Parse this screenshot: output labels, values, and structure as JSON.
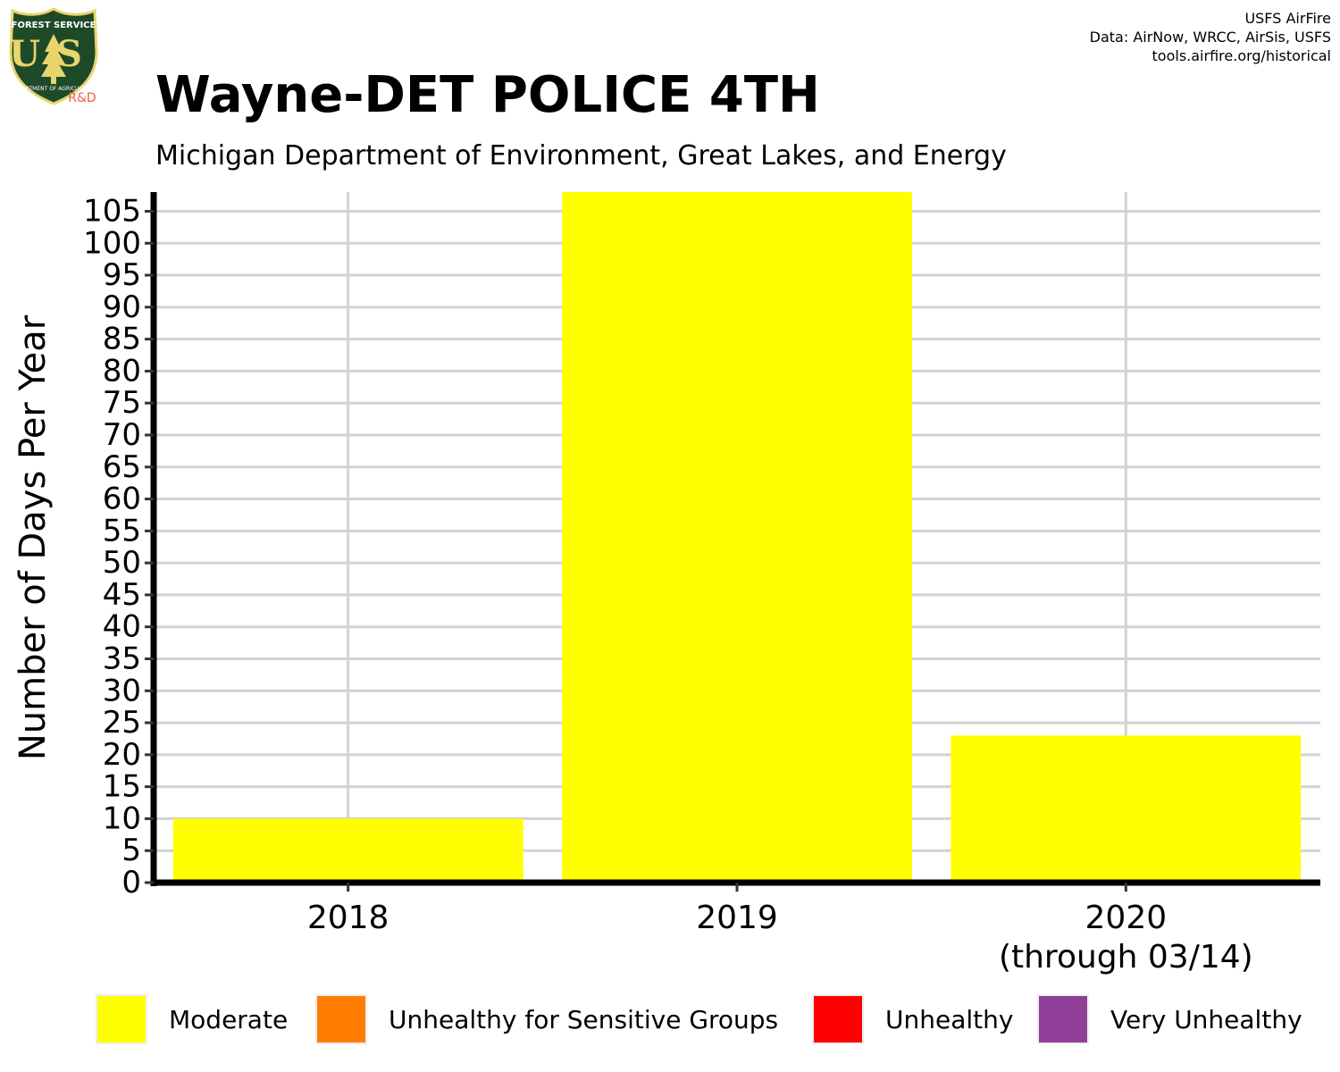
{
  "header": {
    "title": "Wayne-DET POLICE 4TH",
    "subtitle": "Michigan Department of Environment, Great Lakes, and Energy",
    "credits": [
      "USFS AirFire",
      "Data: AirNow, WRCC, AirSis, USFS",
      "tools.airfire.org/historical"
    ],
    "logo": {
      "icon": "forest-service-shield-icon",
      "top_text": "FOREST SERVICE",
      "letters": "US",
      "bottom_text": "DEPARTMENT OF AGRICULTURE",
      "badge": "R&D",
      "colors": {
        "shield": "#1e4a2a",
        "border": "#e8d56c",
        "badge": "#e8604c"
      }
    }
  },
  "chart_data": {
    "type": "bar",
    "stacked": true,
    "categories": [
      "2018",
      "2019",
      "2020"
    ],
    "category_sublabels": [
      "",
      "",
      "(through 03/14)"
    ],
    "series": [
      {
        "name": "Moderate",
        "color": "#ffff00",
        "values": [
          10,
          108,
          23
        ]
      },
      {
        "name": "Unhealthy for Sensitive Groups",
        "color": "#ff7e00",
        "values": [
          0,
          0,
          0
        ]
      },
      {
        "name": "Unhealthy",
        "color": "#ff0000",
        "values": [
          0,
          0,
          0
        ]
      },
      {
        "name": "Very Unhealthy",
        "color": "#8f3f97",
        "values": [
          0,
          0,
          0
        ]
      }
    ],
    "ylabel": "Number of Days Per Year",
    "xlabel": "",
    "ylim": [
      0,
      108
    ],
    "yticks": [
      0,
      5,
      10,
      15,
      20,
      25,
      30,
      35,
      40,
      45,
      50,
      55,
      60,
      65,
      70,
      75,
      80,
      85,
      90,
      95,
      100,
      105
    ],
    "grid": true,
    "legend": "bottom"
  }
}
